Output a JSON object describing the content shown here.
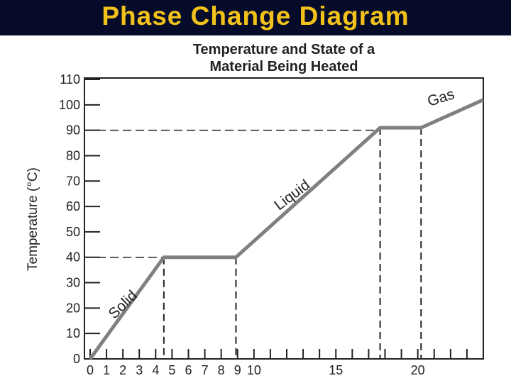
{
  "slide": {
    "title": "Phase Change Diagram",
    "banner_color": "#070b2a",
    "title_color": "#f2c21a"
  },
  "chart_data": {
    "type": "line",
    "title": [
      "Temperature and State of a",
      "Material Being Heated"
    ],
    "xlabel": "",
    "ylabel": "Temperature (°C)",
    "xlim": [
      0,
      24
    ],
    "ylim": [
      0,
      110
    ],
    "y_ticks": [
      0,
      10,
      20,
      30,
      40,
      50,
      60,
      70,
      80,
      90,
      100,
      110
    ],
    "x_tick_labels": [
      {
        "x": 0,
        "label": "0"
      },
      {
        "x": 1,
        "label": "1"
      },
      {
        "x": 2,
        "label": "2"
      },
      {
        "x": 3,
        "label": "3"
      },
      {
        "x": 4,
        "label": "4"
      },
      {
        "x": 5,
        "label": "5"
      },
      {
        "x": 6,
        "label": "6"
      },
      {
        "x": 7,
        "label": "7"
      },
      {
        "x": 8,
        "label": "8"
      },
      {
        "x": 9,
        "label": "9"
      },
      {
        "x": 10,
        "label": "10"
      },
      {
        "x": 15,
        "label": "15"
      },
      {
        "x": 20,
        "label": "20"
      }
    ],
    "x_minor_ticks": [
      0,
      1,
      2,
      3,
      4,
      5,
      6,
      7,
      8,
      9,
      10,
      11,
      12,
      13,
      14,
      15,
      16,
      17,
      18,
      19,
      20,
      21,
      22,
      23,
      24
    ],
    "grid": false,
    "series": [
      {
        "x": [
          0,
          4.5,
          8.9,
          17.7,
          20.2,
          24
        ],
        "y": [
          0,
          40,
          40,
          91,
          91,
          102
        ],
        "color": "#808080"
      }
    ],
    "phase_labels": [
      {
        "text": "Solid",
        "x": 2.2,
        "y": 20,
        "angle": -44
      },
      {
        "text": "Liquid",
        "x": 12.5,
        "y": 63,
        "angle": -37
      },
      {
        "text": "Gas",
        "x": 21.5,
        "y": 101,
        "angle": -18
      }
    ],
    "reference_lines": [
      {
        "y": 40,
        "x_start": 0,
        "x_end": 4.5
      },
      {
        "y": 90,
        "x_start": 0,
        "x_end": 17.7
      }
    ],
    "drop_lines": [
      {
        "x": 4.5,
        "from_y": 40
      },
      {
        "x": 8.9,
        "from_y": 40
      },
      {
        "x": 17.7,
        "from_y": 91
      },
      {
        "x": 20.2,
        "from_y": 91
      }
    ]
  }
}
